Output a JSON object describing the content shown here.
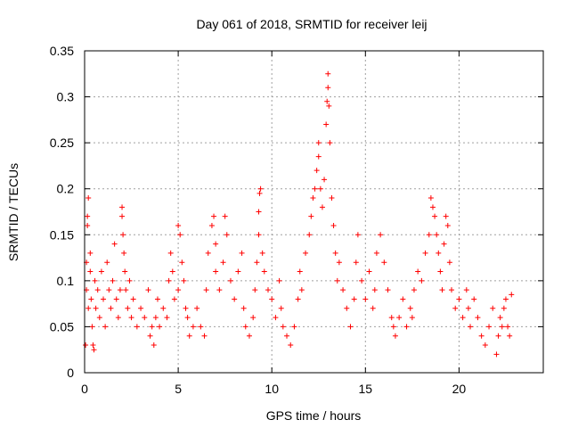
{
  "chart_data": {
    "type": "scatter",
    "title": "Day 061 of 2018, SRMTID for receiver leij",
    "xlabel": "GPS time / hours",
    "ylabel": "SRMTID / TECUs",
    "xlim": [
      0,
      24.5
    ],
    "ylim": [
      0,
      0.35
    ],
    "xticks": [
      0,
      5,
      10,
      15,
      20
    ],
    "xtick_labels": [
      "0",
      "5",
      "10",
      "15",
      "20"
    ],
    "yticks": [
      0,
      0.05,
      0.1,
      0.15,
      0.2,
      0.25,
      0.3,
      0.35
    ],
    "ytick_labels": [
      "0",
      "0.05",
      "0.1",
      "0.15",
      "0.2",
      "0.25",
      "0.3",
      "0.35"
    ],
    "grid": true,
    "marker": "+",
    "color": "#ff0000",
    "series": [
      {
        "name": "SRMTID",
        "points": [
          [
            0.05,
            0.03
          ],
          [
            0.1,
            0.09
          ],
          [
            0.1,
            0.12
          ],
          [
            0.15,
            0.16
          ],
          [
            0.15,
            0.17
          ],
          [
            0.2,
            0.19
          ],
          [
            0.2,
            0.07
          ],
          [
            0.3,
            0.11
          ],
          [
            0.3,
            0.13
          ],
          [
            0.35,
            0.08
          ],
          [
            0.4,
            0.05
          ],
          [
            0.45,
            0.03
          ],
          [
            0.5,
            0.025
          ],
          [
            0.55,
            0.1
          ],
          [
            0.6,
            0.07
          ],
          [
            0.7,
            0.09
          ],
          [
            0.8,
            0.06
          ],
          [
            0.9,
            0.11
          ],
          [
            1.0,
            0.08
          ],
          [
            1.1,
            0.05
          ],
          [
            1.2,
            0.12
          ],
          [
            1.3,
            0.09
          ],
          [
            1.4,
            0.07
          ],
          [
            1.5,
            0.1
          ],
          [
            1.6,
            0.14
          ],
          [
            1.7,
            0.08
          ],
          [
            1.8,
            0.06
          ],
          [
            1.9,
            0.09
          ],
          [
            2.0,
            0.18
          ],
          [
            2.0,
            0.17
          ],
          [
            2.05,
            0.15
          ],
          [
            2.1,
            0.13
          ],
          [
            2.15,
            0.11
          ],
          [
            2.2,
            0.09
          ],
          [
            2.3,
            0.07
          ],
          [
            2.4,
            0.1
          ],
          [
            2.5,
            0.06
          ],
          [
            2.6,
            0.08
          ],
          [
            2.8,
            0.05
          ],
          [
            3.0,
            0.07
          ],
          [
            3.2,
            0.06
          ],
          [
            3.4,
            0.09
          ],
          [
            3.5,
            0.04
          ],
          [
            3.6,
            0.05
          ],
          [
            3.7,
            0.03
          ],
          [
            3.8,
            0.06
          ],
          [
            3.9,
            0.08
          ],
          [
            4.0,
            0.05
          ],
          [
            4.2,
            0.07
          ],
          [
            4.4,
            0.06
          ],
          [
            4.5,
            0.1
          ],
          [
            4.6,
            0.13
          ],
          [
            4.7,
            0.11
          ],
          [
            4.8,
            0.08
          ],
          [
            5.0,
            0.09
          ],
          [
            5.0,
            0.16
          ],
          [
            5.1,
            0.15
          ],
          [
            5.2,
            0.12
          ],
          [
            5.3,
            0.1
          ],
          [
            5.4,
            0.07
          ],
          [
            5.5,
            0.06
          ],
          [
            5.6,
            0.04
          ],
          [
            5.8,
            0.05
          ],
          [
            6.0,
            0.07
          ],
          [
            6.2,
            0.05
          ],
          [
            6.4,
            0.04
          ],
          [
            6.5,
            0.09
          ],
          [
            6.6,
            0.13
          ],
          [
            6.8,
            0.16
          ],
          [
            6.9,
            0.17
          ],
          [
            7.0,
            0.14
          ],
          [
            7.0,
            0.11
          ],
          [
            7.2,
            0.09
          ],
          [
            7.4,
            0.12
          ],
          [
            7.5,
            0.17
          ],
          [
            7.6,
            0.15
          ],
          [
            7.8,
            0.1
          ],
          [
            8.0,
            0.08
          ],
          [
            8.2,
            0.11
          ],
          [
            8.4,
            0.13
          ],
          [
            8.5,
            0.07
          ],
          [
            8.6,
            0.05
          ],
          [
            8.8,
            0.04
          ],
          [
            9.0,
            0.06
          ],
          [
            9.1,
            0.09
          ],
          [
            9.2,
            0.12
          ],
          [
            9.3,
            0.15
          ],
          [
            9.3,
            0.175
          ],
          [
            9.35,
            0.195
          ],
          [
            9.4,
            0.2
          ],
          [
            9.5,
            0.13
          ],
          [
            9.6,
            0.11
          ],
          [
            9.8,
            0.09
          ],
          [
            10.0,
            0.08
          ],
          [
            10.2,
            0.06
          ],
          [
            10.4,
            0.1
          ],
          [
            10.5,
            0.07
          ],
          [
            10.6,
            0.05
          ],
          [
            10.8,
            0.04
          ],
          [
            11.0,
            0.03
          ],
          [
            11.2,
            0.05
          ],
          [
            11.4,
            0.08
          ],
          [
            11.5,
            0.11
          ],
          [
            11.6,
            0.09
          ],
          [
            11.8,
            0.13
          ],
          [
            12.0,
            0.15
          ],
          [
            12.1,
            0.17
          ],
          [
            12.2,
            0.19
          ],
          [
            12.3,
            0.2
          ],
          [
            12.4,
            0.22
          ],
          [
            12.5,
            0.235
          ],
          [
            12.5,
            0.25
          ],
          [
            12.6,
            0.2
          ],
          [
            12.7,
            0.18
          ],
          [
            12.8,
            0.21
          ],
          [
            12.9,
            0.27
          ],
          [
            12.95,
            0.295
          ],
          [
            13.0,
            0.31
          ],
          [
            13.0,
            0.325
          ],
          [
            13.05,
            0.29
          ],
          [
            13.1,
            0.25
          ],
          [
            13.2,
            0.19
          ],
          [
            13.3,
            0.16
          ],
          [
            13.4,
            0.13
          ],
          [
            13.5,
            0.1
          ],
          [
            13.6,
            0.12
          ],
          [
            13.8,
            0.09
          ],
          [
            14.0,
            0.07
          ],
          [
            14.2,
            0.05
          ],
          [
            14.4,
            0.08
          ],
          [
            14.5,
            0.12
          ],
          [
            14.6,
            0.15
          ],
          [
            14.8,
            0.1
          ],
          [
            15.0,
            0.08
          ],
          [
            15.2,
            0.11
          ],
          [
            15.4,
            0.07
          ],
          [
            15.5,
            0.09
          ],
          [
            15.6,
            0.13
          ],
          [
            15.8,
            0.15
          ],
          [
            16.0,
            0.12
          ],
          [
            16.2,
            0.09
          ],
          [
            16.4,
            0.06
          ],
          [
            16.5,
            0.05
          ],
          [
            16.6,
            0.04
          ],
          [
            16.8,
            0.06
          ],
          [
            17.0,
            0.08
          ],
          [
            17.2,
            0.05
          ],
          [
            17.4,
            0.07
          ],
          [
            17.5,
            0.06
          ],
          [
            17.6,
            0.09
          ],
          [
            17.8,
            0.11
          ],
          [
            18.0,
            0.1
          ],
          [
            18.2,
            0.13
          ],
          [
            18.4,
            0.15
          ],
          [
            18.5,
            0.19
          ],
          [
            18.6,
            0.18
          ],
          [
            18.7,
            0.17
          ],
          [
            18.8,
            0.15
          ],
          [
            18.9,
            0.13
          ],
          [
            19.0,
            0.11
          ],
          [
            19.1,
            0.09
          ],
          [
            19.2,
            0.14
          ],
          [
            19.3,
            0.17
          ],
          [
            19.4,
            0.16
          ],
          [
            19.5,
            0.12
          ],
          [
            19.6,
            0.09
          ],
          [
            19.8,
            0.07
          ],
          [
            20.0,
            0.08
          ],
          [
            20.2,
            0.06
          ],
          [
            20.4,
            0.09
          ],
          [
            20.5,
            0.07
          ],
          [
            20.6,
            0.05
          ],
          [
            20.8,
            0.08
          ],
          [
            21.0,
            0.06
          ],
          [
            21.2,
            0.04
          ],
          [
            21.4,
            0.03
          ],
          [
            21.6,
            0.05
          ],
          [
            21.8,
            0.07
          ],
          [
            22.0,
            0.02
          ],
          [
            22.1,
            0.04
          ],
          [
            22.2,
            0.06
          ],
          [
            22.3,
            0.05
          ],
          [
            22.4,
            0.07
          ],
          [
            22.5,
            0.08
          ],
          [
            22.6,
            0.05
          ],
          [
            22.7,
            0.04
          ],
          [
            22.8,
            0.085
          ]
        ]
      }
    ]
  }
}
